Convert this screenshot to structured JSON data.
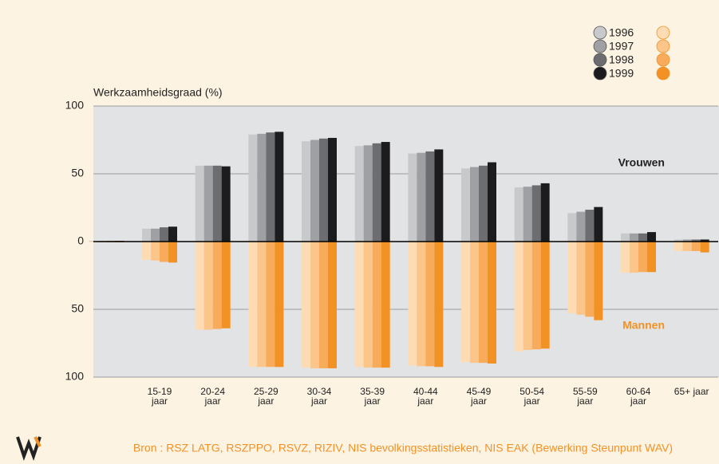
{
  "chart_data": {
    "type": "mirrored_bar",
    "y_axis_label": "Werkzaamheidsgraad (%)",
    "categories": [
      null,
      "15-19 jaar",
      "20-24 jaar",
      "25-29 jaar",
      "30-34 jaar",
      "35-39 jaar",
      "40-44 jaar",
      "45-49 jaar",
      "50-54 jaar",
      "55-59 jaar",
      "60-64 jaar",
      "65+ jaar"
    ],
    "groups": [
      {
        "name": "Vrouwen",
        "series": [
          {
            "name": "1996",
            "color": "#c8c9cb",
            "values": [
              0.5,
              9.5,
              56,
              79,
              74,
              70.5,
              65,
              54,
              40,
              21,
              6,
              1.5
            ]
          },
          {
            "name": "1997",
            "color": "#9fa0a3",
            "values": [
              0.5,
              9.5,
              56,
              79.5,
              75,
              71,
              65.5,
              55,
              40.5,
              22,
              6,
              1.5
            ]
          },
          {
            "name": "1998",
            "color": "#6c6d70",
            "values": [
              0.5,
              10.5,
              56,
              80.5,
              76,
              72.5,
              66.5,
              56,
              41.5,
              23.5,
              6,
              1.5
            ]
          },
          {
            "name": "1999",
            "color": "#1c1c1e",
            "values": [
              0.5,
              11,
              55.5,
              81,
              76.5,
              73.5,
              68,
              58.5,
              43,
              25.5,
              7,
              1.5
            ]
          }
        ]
      },
      {
        "name": "Mannen",
        "series": [
          {
            "color": "#fddcb4",
            "values": [
              -0.5,
              -13.5,
              -65,
              -92.5,
              -93,
              -92.5,
              -91.5,
              -89,
              -81,
              -53,
              -23,
              -7
            ]
          },
          {
            "color": "#fcc58a",
            "values": [
              -0.5,
              -14,
              -65,
              -92.5,
              -93.5,
              -93,
              -92,
              -89.5,
              -80,
              -54,
              -23,
              -7
            ]
          },
          {
            "color": "#f9ab5c",
            "values": [
              -0.5,
              -15,
              -64.5,
              -92.5,
              -93.5,
              -93,
              -92,
              -89.5,
              -79.5,
              -55.5,
              -22.5,
              -7
            ]
          },
          {
            "color": "#f39224",
            "values": [
              -0.5,
              -15.5,
              -64,
              -92.5,
              -93.5,
              -93,
              -92.5,
              -90,
              -79,
              -58,
              -22.5,
              -8
            ]
          }
        ]
      }
    ],
    "ylim": [
      -100,
      100
    ],
    "yticks": [
      {
        "value": -100,
        "label": "100"
      },
      {
        "value": -50,
        "label": "50"
      },
      0,
      50,
      100
    ],
    "grid": true,
    "source": "Bron : RSZ LATG, RSZPPO, RSVZ, RIZIV, NIS bevolkingsstatistieken, NIS EAK (Bewerking Steunpunt WAV)"
  }
}
